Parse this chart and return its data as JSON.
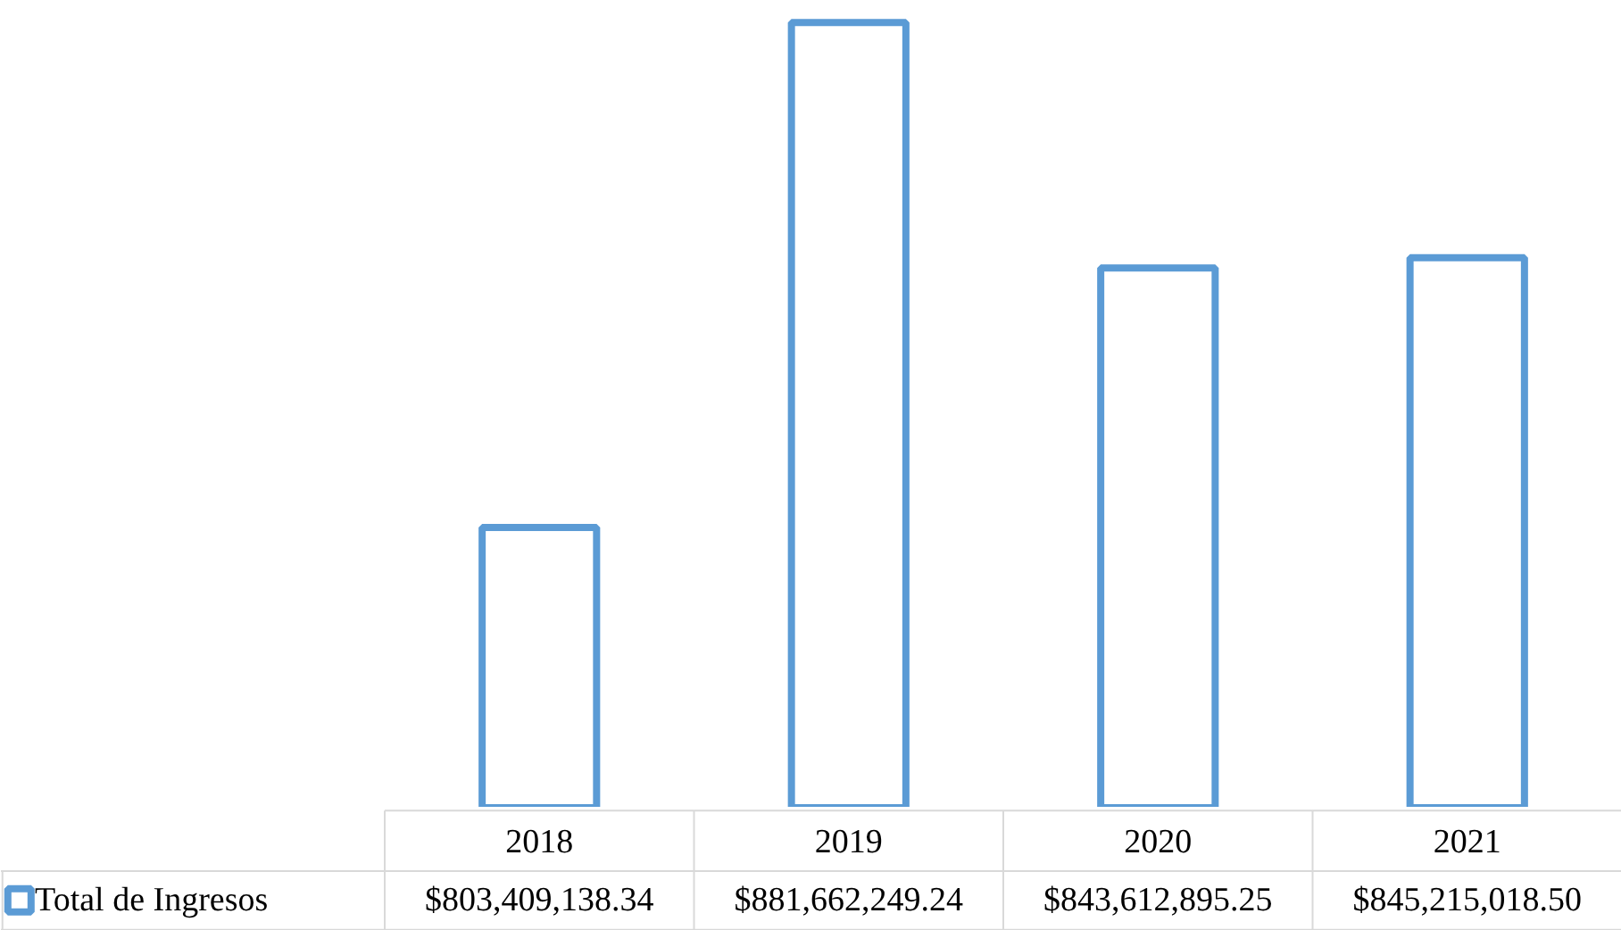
{
  "chart_data": {
    "type": "bar",
    "categories": [
      "2018",
      "2019",
      "2020",
      "2021"
    ],
    "series": [
      {
        "name": "Total de Ingresos",
        "color": "#5b9bd5",
        "values": [
          803409138.34,
          881662249.24,
          843612895.25,
          845215018.5
        ],
        "value_labels": [
          "$803,409,138.34",
          "$881,662,249.24",
          "$843,612,895.25",
          "$845,215,018.50"
        ]
      }
    ],
    "ylim": [
      760000000,
      885000000
    ],
    "tick_labels": "x",
    "legend": "bottom left",
    "grid": false
  }
}
